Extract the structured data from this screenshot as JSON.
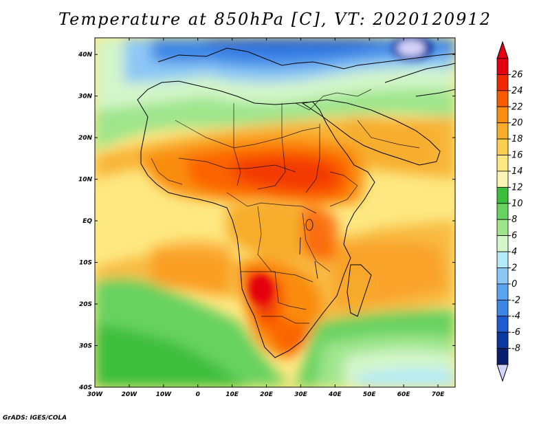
{
  "title": "Temperature at 850hPa [C], VT: 2020120912",
  "credit": "GrADS: IGES/COLA",
  "map": {
    "lon_ticks": [
      "30W",
      "20W",
      "10W",
      "0",
      "10E",
      "20E",
      "30E",
      "40E",
      "50E",
      "60E",
      "70E"
    ],
    "lat_ticks": [
      "40N",
      "30N",
      "20N",
      "10N",
      "EQ",
      "10S",
      "20S",
      "30S",
      "40S"
    ],
    "lon_range": [
      -30,
      75
    ],
    "lat_range": [
      -40,
      44
    ]
  },
  "colorbar": {
    "labels": [
      "26",
      "24",
      "22",
      "20",
      "18",
      "16",
      "14",
      "12",
      "10",
      "8",
      "6",
      "4",
      "2",
      "0",
      "-2",
      "-4",
      "-6",
      "-8"
    ],
    "colors": [
      "#e4000f",
      "#f02a00",
      "#fa5a00",
      "#fa8c10",
      "#f7ac2c",
      "#fbcf4e",
      "#fde882",
      "#fbf5b5",
      "#3cbe3c",
      "#68d260",
      "#9fe58c",
      "#d4f6ca",
      "#b4eaf8",
      "#8cc8f5",
      "#5aa5f2",
      "#3c87e6",
      "#1e5ad2",
      "#0a37a0",
      "#0a1e6e"
    ],
    "tip_low_color": "#d2d2fa"
  }
}
